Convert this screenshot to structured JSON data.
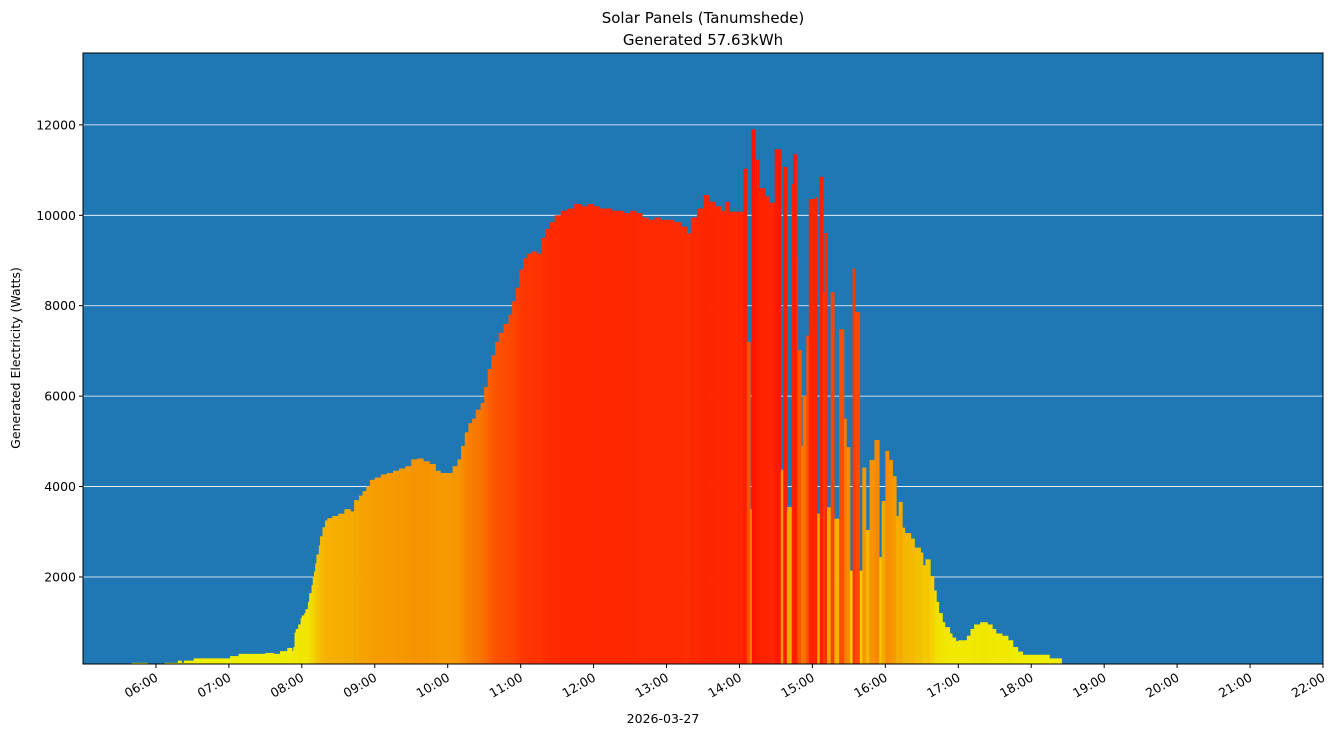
{
  "chart_data": {
    "type": "bar",
    "title": "Solar Panels (Tanumshede)",
    "subtitle": "Generated 57.63kWh",
    "xlabel": "2026-03-27",
    "ylabel": "Generated Electricity (Watts)",
    "xlim": [
      "05:00",
      "22:00"
    ],
    "ylim": [
      75,
      13590
    ],
    "grid": "horizontal",
    "background_color": "#1f77b4",
    "grid_color": "#ffffff",
    "colormap": "yellow (low) to red (high), colored by generated watts",
    "yticks": [
      2000,
      4000,
      6000,
      8000,
      10000,
      12000
    ],
    "ytick_labels": [
      "2000",
      "4000",
      "6000",
      "8000",
      "10000",
      "12000"
    ],
    "xticks": [
      "06:00",
      "07:00",
      "08:00",
      "09:00",
      "10:00",
      "11:00",
      "12:00",
      "13:00",
      "14:00",
      "15:00",
      "16:00",
      "17:00",
      "18:00",
      "19:00",
      "20:00",
      "21:00",
      "22:00"
    ],
    "points": [
      [
        "05:40",
        100
      ],
      [
        "05:53",
        0
      ],
      [
        "06:07",
        100
      ],
      [
        "06:18",
        150
      ],
      [
        "06:21",
        100
      ],
      [
        "06:23",
        150
      ],
      [
        "06:31",
        200
      ],
      [
        "07:01",
        250
      ],
      [
        "07:08",
        300
      ],
      [
        "07:30",
        320
      ],
      [
        "07:37",
        300
      ],
      [
        "07:42",
        360
      ],
      [
        "07:48",
        430
      ],
      [
        "07:52",
        360
      ],
      [
        "07:53",
        450
      ],
      [
        "07:54",
        770
      ],
      [
        "07:55",
        850
      ],
      [
        "07:57",
        950
      ],
      [
        "07:59",
        1090
      ],
      [
        "08:00",
        1150
      ],
      [
        "08:02",
        1200
      ],
      [
        "08:03",
        1290
      ],
      [
        "08:05",
        1450
      ],
      [
        "08:06",
        1640
      ],
      [
        "08:08",
        1820
      ],
      [
        "08:09",
        2010
      ],
      [
        "08:10",
        2120
      ],
      [
        "08:11",
        2300
      ],
      [
        "08:12",
        2500
      ],
      [
        "08:14",
        2700
      ],
      [
        "08:15",
        2900
      ],
      [
        "08:17",
        3100
      ],
      [
        "08:19",
        3250
      ],
      [
        "08:21",
        3300
      ],
      [
        "08:25",
        3350
      ],
      [
        "08:30",
        3400
      ],
      [
        "08:35",
        3500
      ],
      [
        "08:40",
        3450
      ],
      [
        "08:43",
        3700
      ],
      [
        "08:47",
        3800
      ],
      [
        "08:50",
        3900
      ],
      [
        "08:53",
        4000
      ],
      [
        "08:56",
        4150
      ],
      [
        "09:00",
        4200
      ],
      [
        "09:05",
        4270
      ],
      [
        "09:10",
        4300
      ],
      [
        "09:15",
        4350
      ],
      [
        "09:20",
        4400
      ],
      [
        "09:25",
        4450
      ],
      [
        "09:30",
        4600
      ],
      [
        "09:35",
        4620
      ],
      [
        "09:40",
        4560
      ],
      [
        "09:45",
        4500
      ],
      [
        "09:50",
        4350
      ],
      [
        "09:54",
        4300
      ],
      [
        "10:00",
        4300
      ],
      [
        "10:04",
        4450
      ],
      [
        "10:08",
        4600
      ],
      [
        "10:11",
        4900
      ],
      [
        "10:14",
        5200
      ],
      [
        "10:17",
        5400
      ],
      [
        "10:20",
        5500
      ],
      [
        "10:23",
        5700
      ],
      [
        "10:27",
        5850
      ],
      [
        "10:30",
        6200
      ],
      [
        "10:33",
        6600
      ],
      [
        "10:36",
        6900
      ],
      [
        "10:39",
        7200
      ],
      [
        "10:42",
        7400
      ],
      [
        "10:46",
        7600
      ],
      [
        "10:50",
        7800
      ],
      [
        "10:53",
        8100
      ],
      [
        "10:56",
        8400
      ],
      [
        "10:59",
        8800
      ],
      [
        "11:02",
        9050
      ],
      [
        "11:05",
        9150
      ],
      [
        "11:09",
        9200
      ],
      [
        "11:13",
        9150
      ],
      [
        "11:17",
        9500
      ],
      [
        "11:20",
        9700
      ],
      [
        "11:24",
        9850
      ],
      [
        "11:28",
        10000
      ],
      [
        "11:33",
        10100
      ],
      [
        "11:38",
        10150
      ],
      [
        "11:44",
        10250
      ],
      [
        "11:50",
        10200
      ],
      [
        "11:55",
        10250
      ],
      [
        "12:00",
        10200
      ],
      [
        "12:05",
        10150
      ],
      [
        "12:10",
        10150
      ],
      [
        "12:15",
        10100
      ],
      [
        "12:20",
        10100
      ],
      [
        "12:25",
        10050
      ],
      [
        "12:30",
        10100
      ],
      [
        "12:35",
        10050
      ],
      [
        "12:40",
        9950
      ],
      [
        "12:45",
        9900
      ],
      [
        "12:50",
        9950
      ],
      [
        "12:55",
        9900
      ],
      [
        "13:00",
        9900
      ],
      [
        "13:06",
        9850
      ],
      [
        "13:12",
        9750
      ],
      [
        "13:17",
        9600
      ],
      [
        "13:20",
        9950
      ],
      [
        "13:25",
        10150
      ],
      [
        "13:30",
        10450
      ],
      [
        "13:35",
        10300
      ],
      [
        "13:40",
        10200
      ],
      [
        "13:45",
        10100
      ],
      [
        "13:48",
        10300
      ],
      [
        "13:52",
        10080
      ],
      [
        "14:03",
        11030
      ],
      [
        "14:06",
        7200
      ],
      [
        "14:09",
        3500
      ],
      [
        "14:10",
        11900
      ],
      [
        "14:13",
        11230
      ],
      [
        "14:16",
        10600
      ],
      [
        "14:21",
        10420
      ],
      [
        "14:24",
        10280
      ],
      [
        "14:29",
        11460
      ],
      [
        "14:34",
        4370
      ],
      [
        "14:36",
        11070
      ],
      [
        "14:39",
        3550
      ],
      [
        "14:43",
        10690
      ],
      [
        "14:44",
        11350
      ],
      [
        "14:47",
        9090
      ],
      [
        "14:48",
        7020
      ],
      [
        "14:51",
        4900
      ],
      [
        "14:52",
        6010
      ],
      [
        "14:55",
        7340
      ],
      [
        "14:57",
        10360
      ],
      [
        "15:02",
        10400
      ],
      [
        "15:04",
        3400
      ],
      [
        "15:06",
        10850
      ],
      [
        "15:09",
        8300
      ],
      [
        "15:10",
        9610
      ],
      [
        "15:12",
        3540
      ],
      [
        "15:15",
        8300
      ],
      [
        "15:18",
        3290
      ],
      [
        "15:22",
        7480
      ],
      [
        "15:26",
        5500
      ],
      [
        "15:28",
        4870
      ],
      [
        "15:31",
        2140
      ],
      [
        "15:33",
        8820
      ],
      [
        "15:35",
        7860
      ],
      [
        "15:39",
        2140
      ],
      [
        "15:41",
        4420
      ],
      [
        "15:44",
        3040
      ],
      [
        "15:47",
        4590
      ],
      [
        "15:51",
        5030
      ],
      [
        "15:55",
        2440
      ],
      [
        "15:57",
        3680
      ],
      [
        "16:00",
        4790
      ],
      [
        "16:03",
        4590
      ],
      [
        "16:06",
        4230
      ],
      [
        "16:09",
        3350
      ],
      [
        "16:11",
        3660
      ],
      [
        "16:14",
        3090
      ],
      [
        "16:16",
        2970
      ],
      [
        "16:21",
        2850
      ],
      [
        "16:24",
        2650
      ],
      [
        "16:29",
        2540
      ],
      [
        "16:31",
        2260
      ],
      [
        "16:33",
        2390
      ],
      [
        "16:37",
        2020
      ],
      [
        "16:40",
        1700
      ],
      [
        "16:42",
        1450
      ],
      [
        "16:44",
        1200
      ],
      [
        "16:47",
        1000
      ],
      [
        "16:49",
        890
      ],
      [
        "16:53",
        750
      ],
      [
        "16:55",
        660
      ],
      [
        "16:58",
        580
      ],
      [
        "17:00",
        600
      ],
      [
        "17:07",
        700
      ],
      [
        "17:10",
        850
      ],
      [
        "17:13",
        950
      ],
      [
        "17:18",
        1000
      ],
      [
        "17:24",
        950
      ],
      [
        "17:28",
        850
      ],
      [
        "17:31",
        750
      ],
      [
        "17:36",
        700
      ],
      [
        "17:41",
        600
      ],
      [
        "17:45",
        450
      ],
      [
        "17:49",
        350
      ],
      [
        "17:53",
        280
      ],
      [
        "18:15",
        200
      ],
      [
        "18:25",
        80
      ],
      [
        "18:31",
        0
      ]
    ]
  }
}
